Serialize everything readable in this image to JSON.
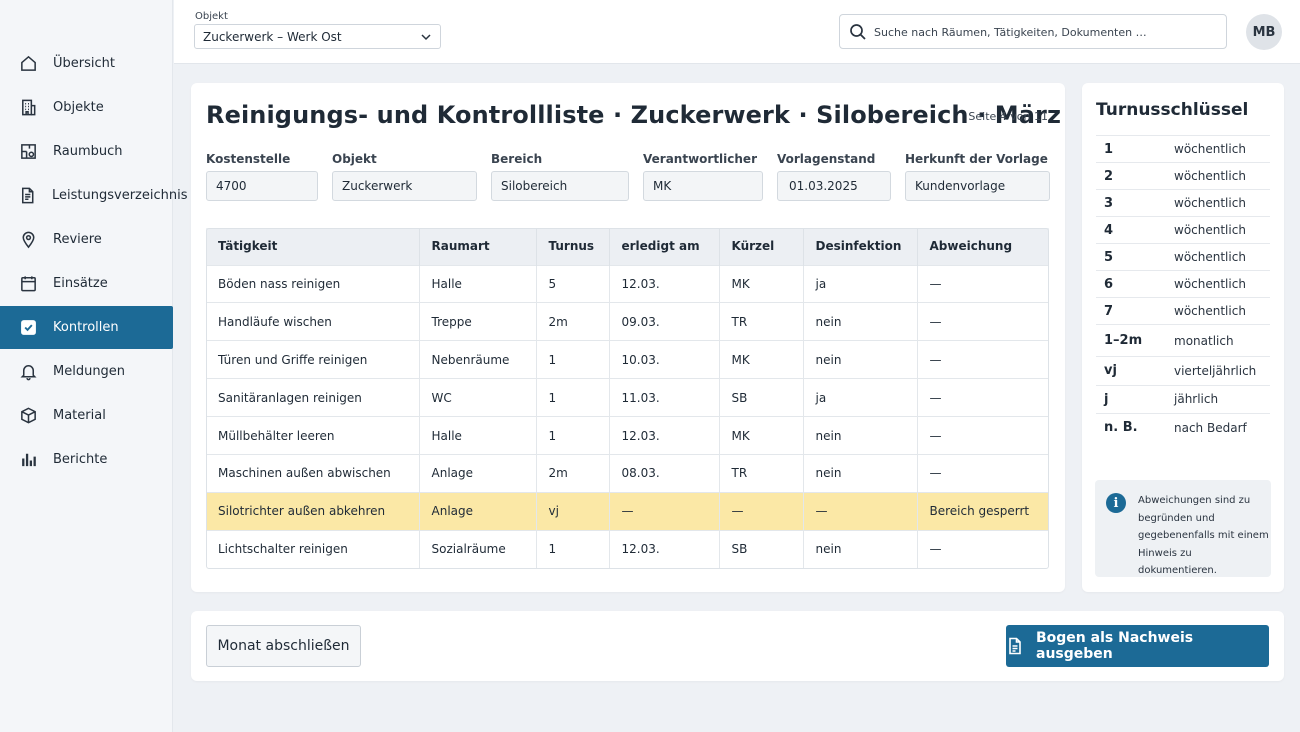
{
  "sidebar": {
    "items": [
      {
        "label": "Übersicht",
        "icon": "home-icon",
        "active": false
      },
      {
        "label": "Objekte",
        "icon": "building-icon",
        "active": false
      },
      {
        "label": "Raumbuch",
        "icon": "floorplan-icon",
        "active": false
      },
      {
        "label": "Leistungsverzeichnis",
        "icon": "document-list-icon",
        "active": false
      },
      {
        "label": "Reviere",
        "icon": "map-pin-icon",
        "active": false
      },
      {
        "label": "Einsätze",
        "icon": "calendar-icon",
        "active": false
      },
      {
        "label": "Kontrollen",
        "icon": "checkbox-icon",
        "active": true
      },
      {
        "label": "Meldungen",
        "icon": "bell-icon",
        "active": false
      },
      {
        "label": "Material",
        "icon": "box-icon",
        "active": false
      },
      {
        "label": "Berichte",
        "icon": "bar-chart-icon",
        "active": false
      }
    ]
  },
  "topbar": {
    "object_label": "Objekt",
    "object_value": "Zuckerwerk – Werk Ost",
    "search_placeholder": "Suche nach Räumen, Tätigkeiten, Dokumenten …",
    "avatar_initials": "MB"
  },
  "main": {
    "title": "Reinigungs- und Kontrollliste · Zuckerwerk · Silobereich · März",
    "page_info": "Seite 4 von 11",
    "fields": {
      "kostenstelle": {
        "label": "Kostenstelle",
        "value": "4700"
      },
      "objekt": {
        "label": "Objekt",
        "value": "Zuckerwerk"
      },
      "bereich": {
        "label": "Bereich",
        "value": "Silobereich"
      },
      "verantwortlicher": {
        "label": "Verantwortlicher",
        "value": "MK"
      },
      "vorlagenstand": {
        "label": "Vorlagenstand",
        "value": "01.03.2025"
      },
      "herkunft": {
        "label": "Herkunft der Vorlage",
        "value": "Kundenvorlage"
      }
    },
    "table": {
      "headers": [
        "Tätigkeit",
        "Raumart",
        "Turnus",
        "erledigt am",
        "Kürzel",
        "Desinfektion",
        "Abweichung"
      ],
      "rows": [
        [
          "Böden nass reinigen",
          "Halle",
          "5",
          "12.03.",
          "MK",
          "ja",
          "—"
        ],
        [
          "Handläufe wischen",
          "Treppe",
          "2m",
          "09.03.",
          "TR",
          "nein",
          "—"
        ],
        [
          "Türen und Griffe reinigen",
          "Nebenräume",
          "1",
          "10.03.",
          "MK",
          "nein",
          "—"
        ],
        [
          "Sanitäranlagen reinigen",
          "WC",
          "1",
          "11.03.",
          "SB",
          "ja",
          "—"
        ],
        [
          "Müllbehälter leeren",
          "Halle",
          "1",
          "12.03.",
          "MK",
          "nein",
          "—"
        ],
        [
          "Maschinen außen abwischen",
          "Anlage",
          "2m",
          "08.03.",
          "TR",
          "nein",
          "—"
        ],
        [
          "Silotrichter außen abkehren",
          "Anlage",
          "vj",
          "—",
          "—",
          "—",
          "Bereich gesperrt"
        ],
        [
          "Lichtschalter reinigen",
          "Sozialräume",
          "1",
          "12.03.",
          "SB",
          "nein",
          "—"
        ]
      ],
      "highlight_color": "#fbe8a6"
    }
  },
  "legend": {
    "title": "Turnusschlüssel",
    "entries": [
      {
        "key": "1",
        "value": "wöchentlich"
      },
      {
        "key": "2",
        "value": "wöchentlich"
      },
      {
        "key": "3",
        "value": "wöchentlich"
      },
      {
        "key": "4",
        "value": "wöchentlich"
      },
      {
        "key": "5",
        "value": "wöchentlich"
      },
      {
        "key": "6",
        "value": "wöchentlich"
      },
      {
        "key": "7",
        "value": "wöchentlich"
      },
      {
        "key": "1–2m",
        "value": "monatlich"
      },
      {
        "key": "vj",
        "value": "vierteljährlich"
      },
      {
        "key": "j",
        "value": "jährlich"
      },
      {
        "key": "n. B.",
        "value": "nach Bedarf"
      }
    ],
    "note": "Abweichungen sind zu begründen und gegebenenfalls mit einem Hinweis zu dokumentieren."
  },
  "actions": {
    "close_month": "Monat abschließen",
    "export": "Bogen als Nachweis ausgeben"
  },
  "colors": {
    "accent": "#1c6a96",
    "highlight": "#fbe8a6"
  }
}
